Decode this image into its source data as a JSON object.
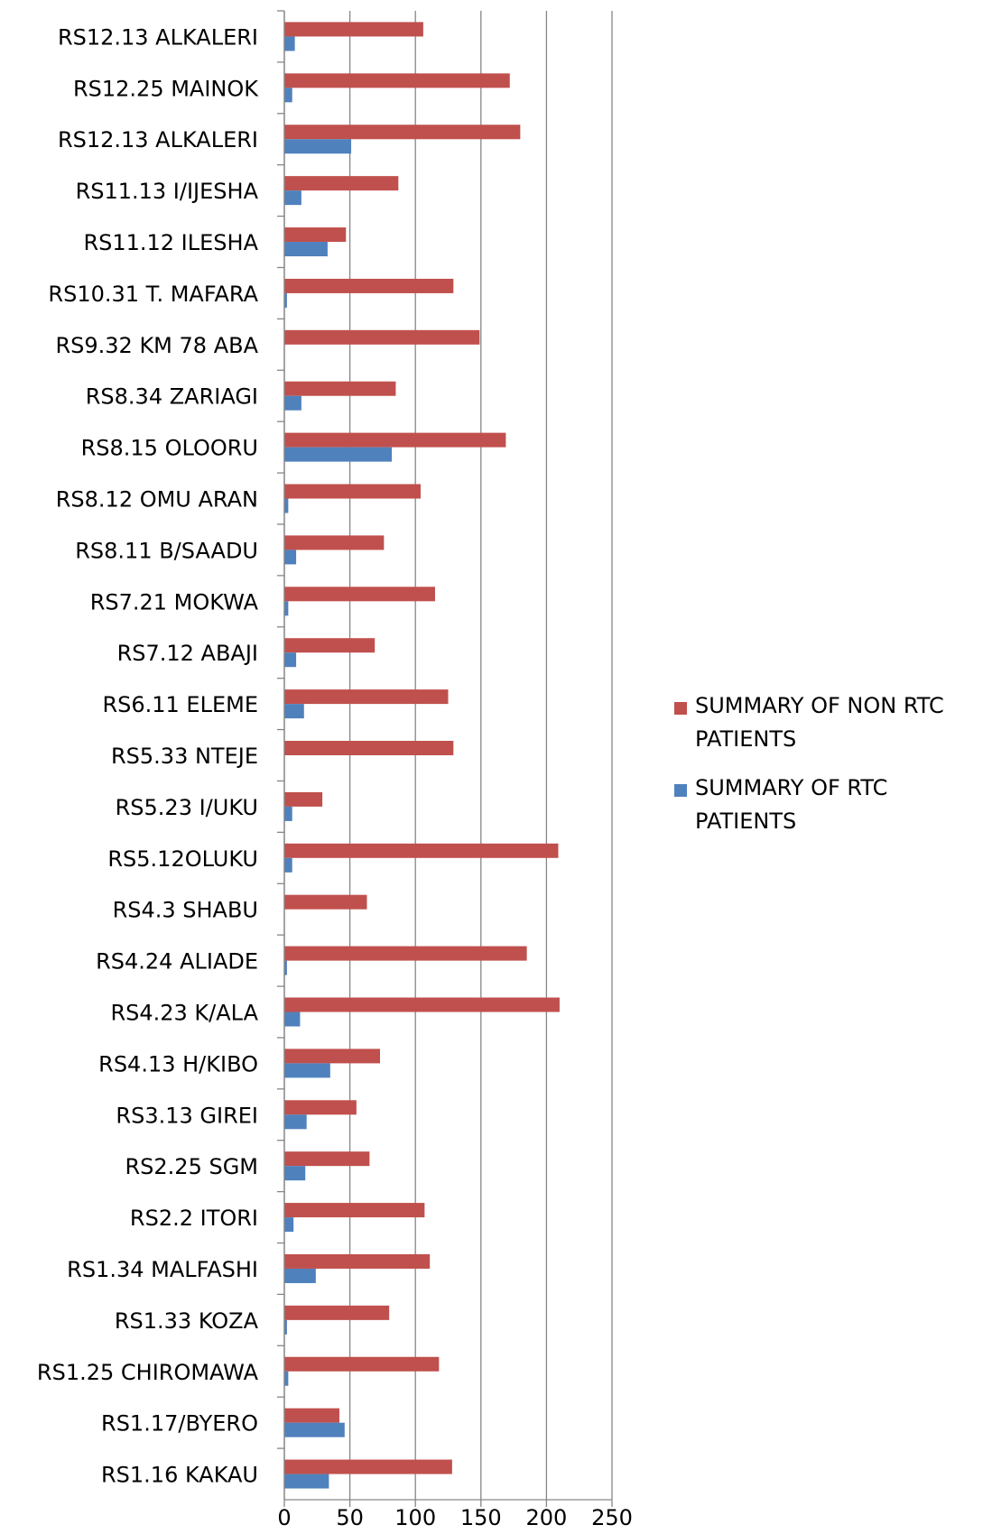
{
  "chart_data": {
    "type": "bar",
    "orientation": "horizontal",
    "categories": [
      "RS12.13 ALKALERI",
      "RS12.25 MAINOK",
      "RS12.13 ALKALERI",
      "RS11.13 I/IJESHA",
      "RS11.12 ILESHA",
      "RS10.31 T. MAFARA",
      "RS9.32  KM 78 ABA",
      "RS8.34 ZARIAGI",
      "RS8.15 OLOORU",
      "RS8.12 OMU ARAN",
      "RS8.11 B/SAADU",
      "RS7.21 MOKWA",
      "RS7.12 ABAJI",
      "RS6.11 ELEME",
      "RS5.33 NTEJE",
      "RS5.23 I/UKU",
      "RS5.12OLUKU",
      "RS4.3 SHABU",
      "RS4.24 ALIADE",
      "RS4.23 K/ALA",
      "RS4.13 H/KIBO",
      "RS3.13 GIREI",
      "RS2.25 SGM",
      "RS2.2 ITORI",
      "RS1.34 MALFASHI",
      "RS1.33 KOZA",
      "RS1.25 CHIROMAWA",
      "RS1.17/BYERO",
      "RS1.16 KAKAU"
    ],
    "series": [
      {
        "name": "SUMMARY OF NON RTC PATIENTS",
        "color": "#c0504d",
        "values": [
          106,
          172,
          180,
          87,
          47,
          129,
          149,
          85,
          169,
          104,
          76,
          115,
          69,
          125,
          129,
          29,
          209,
          63,
          185,
          210,
          73,
          55,
          65,
          107,
          111,
          80,
          118,
          42,
          128
        ]
      },
      {
        "name": "SUMMARY OF RTC PATIENTS",
        "color": "#4f81bd",
        "values": [
          8,
          6,
          51,
          13,
          33,
          2,
          0,
          13,
          82,
          3,
          9,
          3,
          9,
          15,
          0,
          6,
          6,
          0,
          2,
          12,
          35,
          17,
          16,
          7,
          24,
          2,
          3,
          46,
          34
        ]
      }
    ],
    "x_ticks": [
      "0",
      "50",
      "100",
      "150",
      "200",
      "250"
    ],
    "xlim": [
      0,
      250
    ],
    "grid": "vertical",
    "legend": "right",
    "title": "",
    "xlabel": "",
    "ylabel": ""
  }
}
